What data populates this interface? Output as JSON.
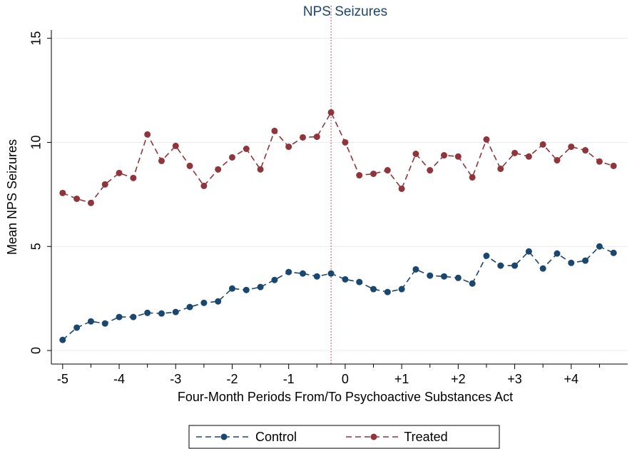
{
  "chart_data": {
    "type": "line",
    "title": "NPS Seizures",
    "x_label": "Four-Month Periods From/To Psychoactive Substances Act",
    "y_label": "Mean NPS Seizures",
    "x": [
      -5,
      -4.75,
      -4.5,
      -4.25,
      -4,
      -3.75,
      -3.5,
      -3.25,
      -3,
      -2.75,
      -2.5,
      -2.25,
      -2,
      -1.75,
      -1.5,
      -1.25,
      -1,
      -0.75,
      -0.5,
      -0.25,
      0,
      0.25,
      0.5,
      0.75,
      1,
      1.25,
      1.5,
      1.75,
      2,
      2.25,
      2.5,
      2.75,
      3,
      3.25,
      3.5,
      3.75,
      4,
      4.25,
      4.5,
      4.75
    ],
    "series": [
      {
        "name": "Control",
        "color": "#1a476f",
        "values": [
          0.51,
          1.1,
          1.4,
          1.3,
          1.61,
          1.61,
          1.81,
          1.78,
          1.85,
          2.09,
          2.29,
          2.36,
          2.98,
          2.91,
          3.05,
          3.39,
          3.77,
          3.7,
          3.56,
          3.7,
          3.42,
          3.29,
          2.95,
          2.81,
          2.95,
          3.9,
          3.6,
          3.56,
          3.49,
          3.22,
          4.55,
          4.08,
          4.08,
          4.76,
          3.94,
          4.66,
          4.21,
          4.32,
          5.0,
          4.69
        ]
      },
      {
        "name": "Treated",
        "color": "#90353b",
        "values": [
          7.57,
          7.29,
          7.09,
          7.98,
          8.53,
          8.29,
          10.38,
          9.11,
          9.83,
          8.87,
          7.91,
          8.7,
          9.28,
          9.69,
          8.7,
          10.55,
          9.79,
          10.24,
          10.27,
          11.44,
          10.0,
          8.42,
          8.49,
          8.66,
          7.77,
          9.45,
          8.66,
          9.38,
          9.32,
          8.32,
          10.14,
          8.73,
          9.49,
          9.32,
          9.9,
          9.14,
          9.79,
          9.62,
          9.08,
          8.87
        ]
      }
    ],
    "xlim": [
      -5.2,
      5
    ],
    "ylim": [
      -0.65,
      15.4
    ],
    "xticks": [
      -5,
      -4,
      -3,
      -2,
      -1,
      0,
      {
        "value": 1,
        "label": "+1"
      },
      {
        "value": 2,
        "label": "+2"
      },
      {
        "value": 3,
        "label": "+3"
      },
      {
        "value": 4,
        "label": "+4"
      }
    ],
    "xminorticks": [
      -4.5,
      -3.5,
      -2.5,
      -1.5,
      -0.5,
      0.5,
      1.5,
      2.5,
      3.5,
      4.5
    ],
    "yticks": [
      0,
      5,
      10,
      15
    ],
    "vline": -0.25,
    "vline_color": "#c0405a",
    "grid": true,
    "legend": "bottom"
  }
}
